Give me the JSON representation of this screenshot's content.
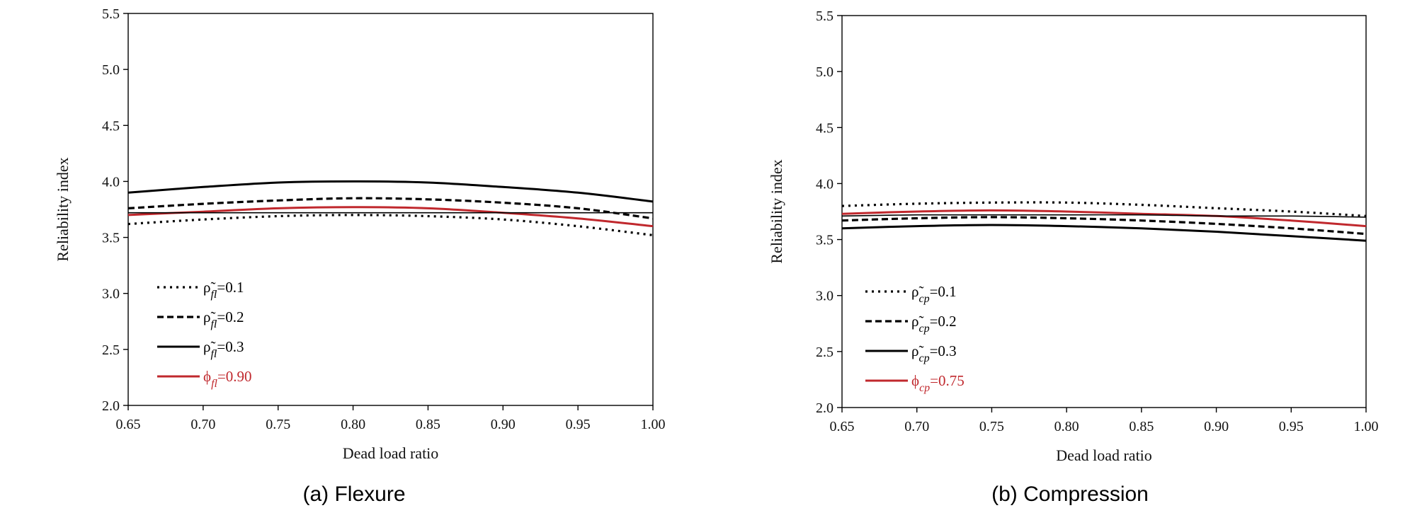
{
  "chart_data": [
    {
      "type": "line",
      "caption": "(a) Flexure",
      "xlabel": "Dead load ratio",
      "ylabel": "Reliability index",
      "xlim": [
        0.65,
        1.0
      ],
      "ylim": [
        2.0,
        5.5
      ],
      "xticks": [
        "0.65",
        "0.70",
        "0.75",
        "0.80",
        "0.85",
        "0.90",
        "0.95",
        "1.00"
      ],
      "yticks": [
        "2.0",
        "2.5",
        "3.0",
        "3.5",
        "4.0",
        "4.5",
        "5.0",
        "5.5"
      ],
      "legend_position": "lower-left",
      "x": [
        0.65,
        0.7,
        0.75,
        0.8,
        0.85,
        0.9,
        0.95,
        1.0
      ],
      "series": [
        {
          "name": "ρ̃fl=0.1",
          "symbol": "ρ̃",
          "subscript": "fl",
          "value_text": "=0.1",
          "style": "dotted",
          "color": "#000000",
          "values": [
            3.62,
            3.66,
            3.69,
            3.7,
            3.69,
            3.66,
            3.6,
            3.52
          ]
        },
        {
          "name": "ρ̃fl=0.2",
          "symbol": "ρ̃",
          "subscript": "fl",
          "value_text": "=0.2",
          "style": "dashed",
          "color": "#000000",
          "values": [
            3.76,
            3.8,
            3.83,
            3.85,
            3.84,
            3.81,
            3.76,
            3.67
          ]
        },
        {
          "name": "ρ̃fl=0.3",
          "symbol": "ρ̃",
          "subscript": "fl",
          "value_text": "=0.3",
          "style": "solid",
          "color": "#000000",
          "values": [
            3.9,
            3.95,
            3.99,
            4.0,
            3.99,
            3.95,
            3.9,
            3.82
          ]
        },
        {
          "name": "ϕfl=0.90",
          "symbol": "ϕ",
          "subscript": "fl",
          "value_text": "=0.90",
          "style": "solid",
          "color": "#c0282d",
          "values": [
            3.7,
            3.73,
            3.76,
            3.77,
            3.76,
            3.72,
            3.67,
            3.6
          ]
        },
        {
          "name": "",
          "style": "solid-thin",
          "color": "#000000",
          "values": [
            3.72,
            3.72,
            3.72,
            3.72,
            3.72,
            3.72,
            3.72,
            3.72
          ]
        }
      ]
    },
    {
      "type": "line",
      "caption": "(b) Compression",
      "xlabel": "Dead load ratio",
      "ylabel": "Reliability index",
      "xlim": [
        0.65,
        1.0
      ],
      "ylim": [
        2.0,
        5.5
      ],
      "xticks": [
        "0.65",
        "0.70",
        "0.75",
        "0.80",
        "0.85",
        "0.90",
        "0.95",
        "1.00"
      ],
      "yticks": [
        "2.0",
        "2.5",
        "3.0",
        "3.5",
        "4.0",
        "4.5",
        "5.0",
        "5.5"
      ],
      "legend_position": "lower-left",
      "x": [
        0.65,
        0.7,
        0.75,
        0.8,
        0.85,
        0.9,
        0.95,
        1.0
      ],
      "series": [
        {
          "name": "ρ̃cp=0.1",
          "symbol": "ρ̃",
          "subscript": "cp",
          "value_text": "=0.1",
          "style": "dotted",
          "color": "#000000",
          "values": [
            3.8,
            3.82,
            3.83,
            3.83,
            3.81,
            3.78,
            3.75,
            3.71
          ]
        },
        {
          "name": "ρ̃cp=0.2",
          "symbol": "ρ̃",
          "subscript": "cp",
          "value_text": "=0.2",
          "style": "dashed",
          "color": "#000000",
          "values": [
            3.67,
            3.69,
            3.7,
            3.69,
            3.67,
            3.64,
            3.6,
            3.55
          ]
        },
        {
          "name": "ρ̃cp=0.3",
          "symbol": "ρ̃",
          "subscript": "cp",
          "value_text": "=0.3",
          "style": "solid",
          "color": "#000000",
          "values": [
            3.6,
            3.62,
            3.63,
            3.62,
            3.6,
            3.57,
            3.53,
            3.49
          ]
        },
        {
          "name": "ϕcp=0.75",
          "symbol": "ϕ",
          "subscript": "cp",
          "value_text": "=0.75",
          "style": "solid",
          "color": "#c0282d",
          "values": [
            3.73,
            3.75,
            3.76,
            3.75,
            3.73,
            3.71,
            3.67,
            3.62
          ]
        },
        {
          "name": "",
          "style": "solid-thin",
          "color": "#000000",
          "values": [
            3.71,
            3.72,
            3.72,
            3.72,
            3.72,
            3.71,
            3.71,
            3.7
          ]
        }
      ]
    }
  ]
}
